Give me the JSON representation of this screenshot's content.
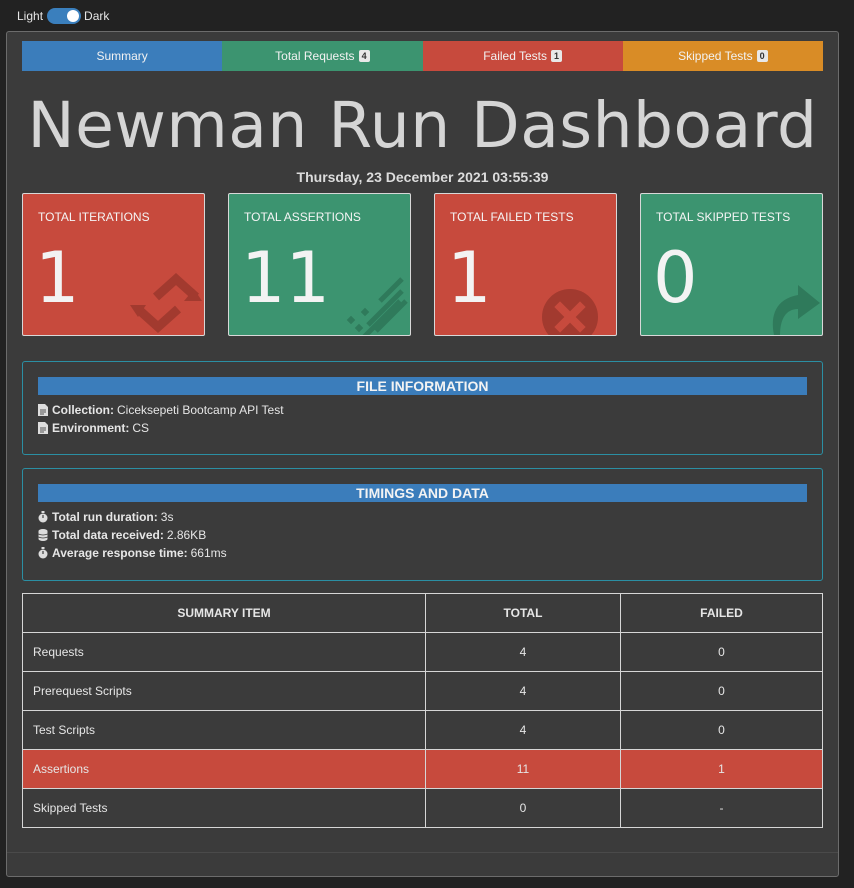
{
  "theme": {
    "light_label": "Light",
    "dark_label": "Dark",
    "mode": "dark"
  },
  "tabs": [
    {
      "label": "Summary",
      "badge": null,
      "color": "#3b7dbb"
    },
    {
      "label": "Total Requests",
      "badge": "4",
      "color": "#3c9470"
    },
    {
      "label": "Failed Tests",
      "badge": "1",
      "color": "#c74a3d"
    },
    {
      "label": "Skipped Tests",
      "badge": "0",
      "color": "#d98c26"
    }
  ],
  "title": "Newman Run Dashboard",
  "date": "Thursday, 23 December 2021 03:55:39",
  "stats": [
    {
      "label": "TOTAL ITERATIONS",
      "value": "1",
      "color": "#c74a3d",
      "icon": "refresh-icon"
    },
    {
      "label": "TOTAL ASSERTIONS",
      "value": "11",
      "color": "#3c9470",
      "icon": "list-icon"
    },
    {
      "label": "TOTAL FAILED TESTS",
      "value": "1",
      "color": "#c74a3d",
      "icon": "close-circle-icon"
    },
    {
      "label": "TOTAL SKIPPED TESTS",
      "value": "0",
      "color": "#3c9470",
      "icon": "share-arrow-icon"
    }
  ],
  "file_info": {
    "heading": "FILE INFORMATION",
    "collection_label": "Collection:",
    "collection_value": "Ciceksepeti Bootcamp API Test",
    "environment_label": "Environment:",
    "environment_value": "CS"
  },
  "timings": {
    "heading": "TIMINGS AND DATA",
    "duration_label": "Total run duration:",
    "duration_value": "3s",
    "data_label": "Total data received:",
    "data_value": "2.86KB",
    "avg_label": "Average response time:",
    "avg_value": "661ms"
  },
  "summary_table": {
    "headers": [
      "SUMMARY ITEM",
      "TOTAL",
      "FAILED"
    ],
    "rows": [
      {
        "item": "Requests",
        "total": "4",
        "failed": "0"
      },
      {
        "item": "Prerequest Scripts",
        "total": "4",
        "failed": "0"
      },
      {
        "item": "Test Scripts",
        "total": "4",
        "failed": "0"
      },
      {
        "item": "Assertions",
        "total": "11",
        "failed": "1"
      },
      {
        "item": "Skipped Tests",
        "total": "0",
        "failed": "-"
      }
    ]
  }
}
